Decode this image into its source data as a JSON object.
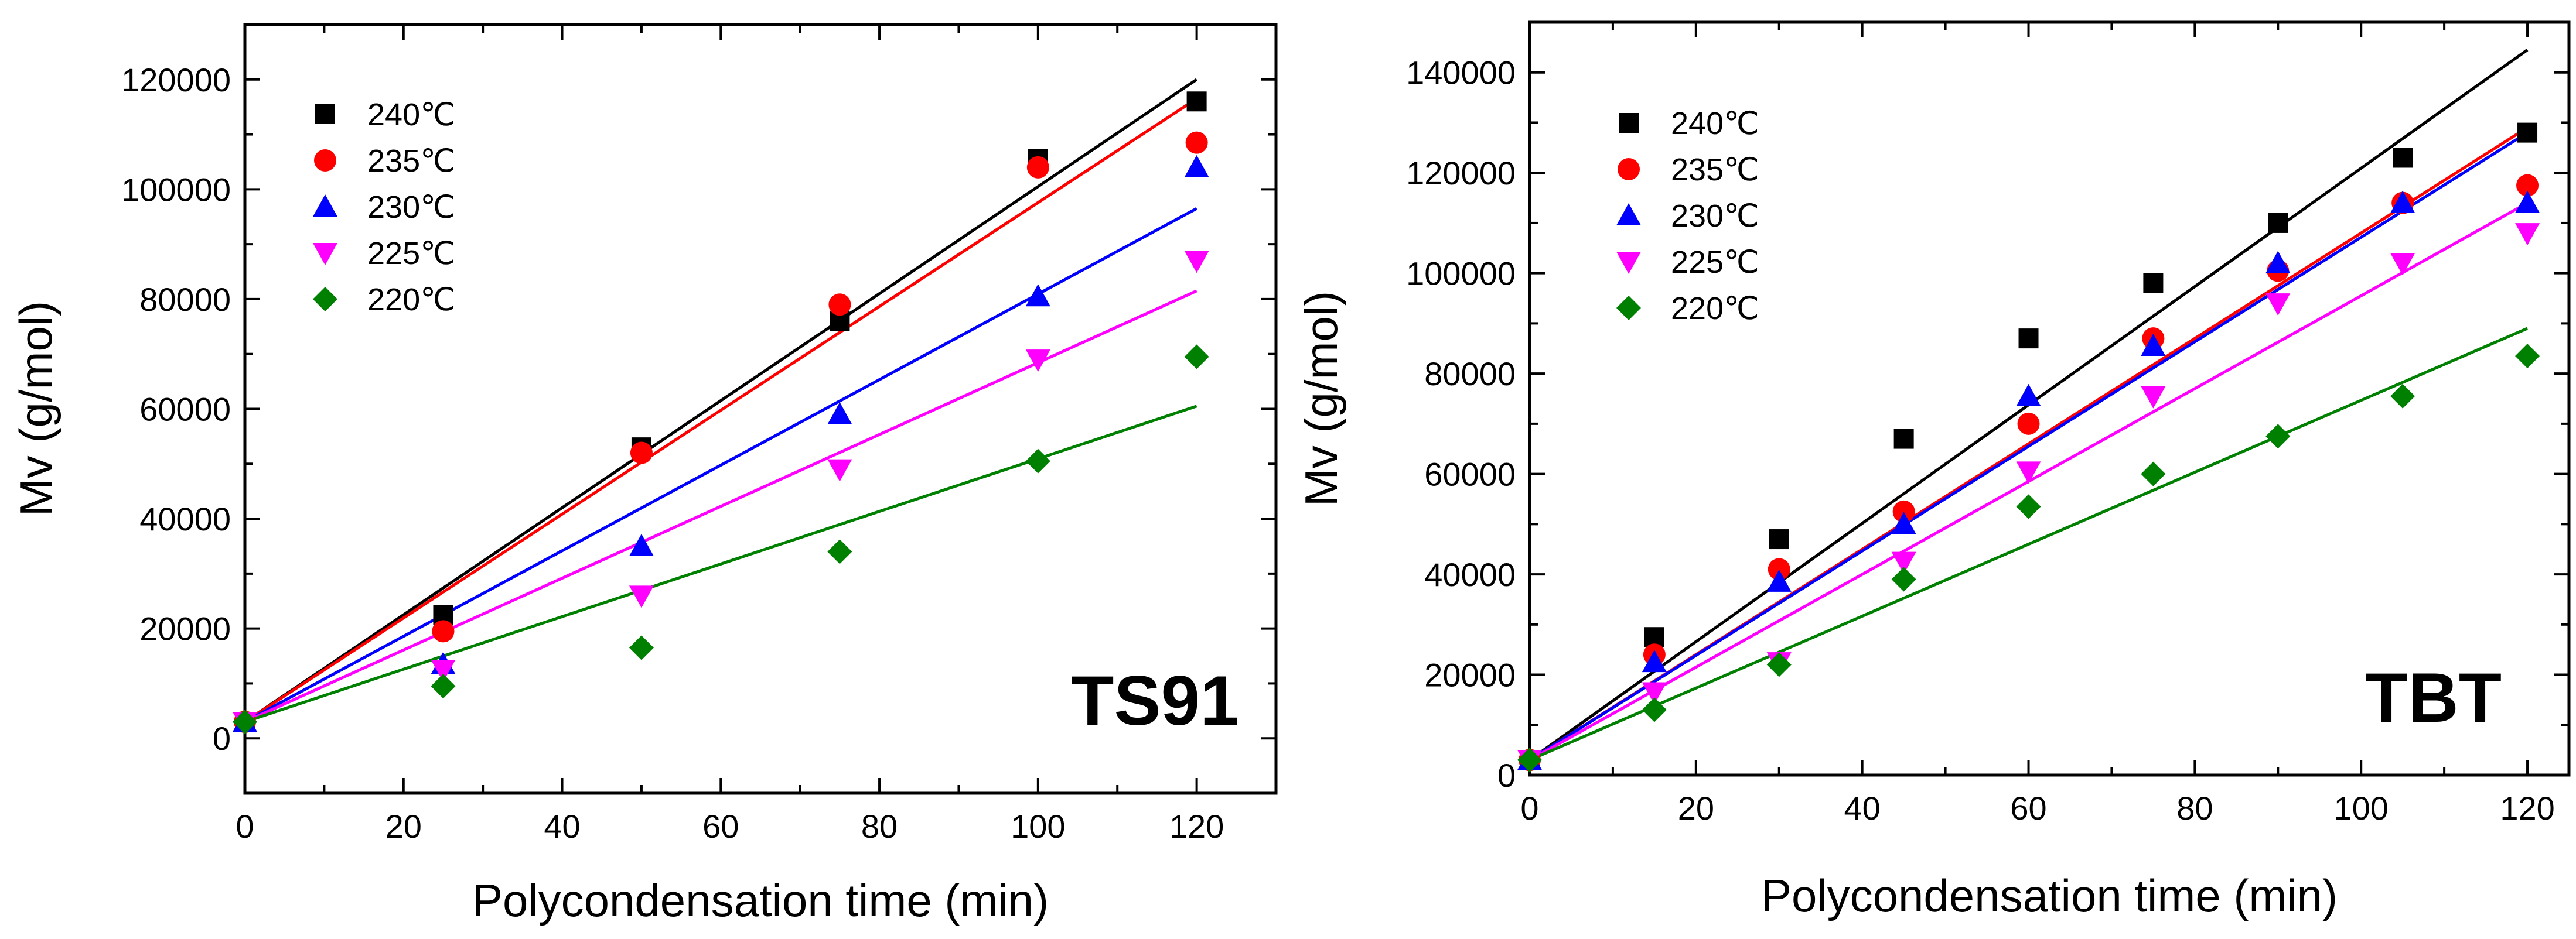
{
  "chart_data": [
    {
      "type": "scatter",
      "panel_label": "TS91",
      "xlabel": "Polycondensation time (min)",
      "ylabel": "Mv (g/mol)",
      "xlim": [
        0,
        130
      ],
      "ylim": [
        -10000,
        130000
      ],
      "x_ticks": [
        0,
        20,
        40,
        60,
        80,
        100,
        120
      ],
      "y_ticks": [
        0,
        20000,
        40000,
        60000,
        80000,
        100000,
        120000
      ],
      "legend_position": "top-left",
      "series": [
        {
          "name": "240℃",
          "color": "#000000",
          "marker": "square",
          "x": [
            0,
            25,
            50,
            75,
            100,
            120
          ],
          "y": [
            3000,
            22500,
            53000,
            76000,
            105500,
            116000
          ],
          "fit": {
            "x": [
              0,
              120
            ],
            "y": [
              3000,
              120000
            ]
          }
        },
        {
          "name": "235℃",
          "color": "#ff0000",
          "marker": "circle",
          "x": [
            0,
            25,
            50,
            75,
            100,
            120
          ],
          "y": [
            3000,
            19500,
            52000,
            79000,
            104000,
            108500
          ],
          "fit": {
            "x": [
              0,
              120
            ],
            "y": [
              3000,
              116500
            ]
          }
        },
        {
          "name": "230℃",
          "color": "#0000ff",
          "marker": "triangle-up",
          "x": [
            0,
            25,
            50,
            75,
            100,
            120
          ],
          "y": [
            3000,
            13500,
            35000,
            59000,
            80500,
            104000
          ],
          "fit": {
            "x": [
              0,
              120
            ],
            "y": [
              3000,
              96500
            ]
          }
        },
        {
          "name": "225℃",
          "color": "#ff00ff",
          "marker": "triangle-down",
          "x": [
            0,
            25,
            50,
            75,
            100,
            120
          ],
          "y": [
            3000,
            12500,
            26000,
            49000,
            69000,
            87000
          ],
          "fit": {
            "x": [
              0,
              120
            ],
            "y": [
              3000,
              81500
            ]
          }
        },
        {
          "name": "220℃",
          "color": "#008000",
          "marker": "diamond",
          "x": [
            0,
            25,
            50,
            75,
            100,
            120
          ],
          "y": [
            3000,
            9500,
            16500,
            34000,
            50500,
            69500
          ],
          "fit": {
            "x": [
              0,
              120
            ],
            "y": [
              3000,
              60500
            ]
          }
        }
      ]
    },
    {
      "type": "scatter",
      "panel_label": "TBT",
      "xlabel": "Polycondensation time (min)",
      "ylabel": "Mv (g/mol)",
      "xlim": [
        0,
        125
      ],
      "ylim": [
        0,
        150000
      ],
      "x_ticks": [
        0,
        20,
        40,
        60,
        80,
        100,
        120
      ],
      "y_ticks": [
        0,
        20000,
        40000,
        60000,
        80000,
        100000,
        120000,
        140000
      ],
      "legend_position": "top-left",
      "series": [
        {
          "name": "240℃",
          "color": "#000000",
          "marker": "square",
          "x": [
            0,
            15,
            30,
            45,
            60,
            75,
            90,
            105,
            120
          ],
          "y": [
            3000,
            27500,
            47000,
            67000,
            87000,
            98000,
            110000,
            123000,
            128000
          ],
          "fit": {
            "x": [
              0,
              120
            ],
            "y": [
              3000,
              144500
            ]
          }
        },
        {
          "name": "235℃",
          "color": "#ff0000",
          "marker": "circle",
          "x": [
            0,
            15,
            30,
            45,
            60,
            75,
            90,
            105,
            120
          ],
          "y": [
            3000,
            24000,
            41000,
            52500,
            70000,
            87000,
            100500,
            114000,
            117500
          ],
          "fit": {
            "x": [
              0,
              120
            ],
            "y": [
              3000,
              129000
            ]
          }
        },
        {
          "name": "230℃",
          "color": "#0000ff",
          "marker": "triangle-up",
          "x": [
            0,
            15,
            30,
            45,
            60,
            75,
            90,
            105,
            120
          ],
          "y": [
            3000,
            22500,
            38500,
            50000,
            75500,
            85500,
            102000,
            114000,
            114000
          ],
          "fit": {
            "x": [
              0,
              120
            ],
            "y": [
              3000,
              128000
            ]
          }
        },
        {
          "name": "225℃",
          "color": "#ff00ff",
          "marker": "triangle-down",
          "x": [
            0,
            15,
            30,
            45,
            60,
            75,
            90,
            105,
            120
          ],
          "y": [
            3000,
            16500,
            22500,
            42500,
            60500,
            75500,
            94000,
            102000,
            108000
          ],
          "fit": {
            "x": [
              0,
              120
            ],
            "y": [
              3000,
              114000
            ]
          }
        },
        {
          "name": "220℃",
          "color": "#008000",
          "marker": "diamond",
          "x": [
            0,
            15,
            30,
            45,
            60,
            75,
            90,
            105,
            120
          ],
          "y": [
            3000,
            13000,
            22000,
            39000,
            53500,
            60000,
            67500,
            75500,
            83500
          ],
          "fit": {
            "x": [
              0,
              120
            ],
            "y": [
              3000,
              89000
            ]
          }
        }
      ]
    }
  ]
}
